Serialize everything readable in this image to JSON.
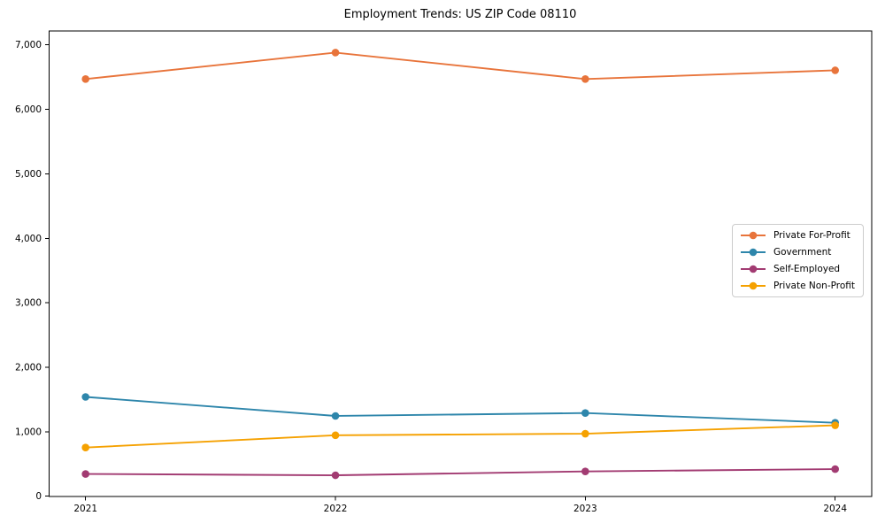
{
  "chart_data": {
    "type": "line",
    "title": "Employment Trends: US ZIP Code 08110",
    "x": [
      "2021",
      "2022",
      "2023",
      "2024"
    ],
    "series": [
      {
        "name": "Private For-Profit",
        "color": "#E8743B",
        "values": [
          6470,
          6880,
          6470,
          6605
        ]
      },
      {
        "name": "Government",
        "color": "#2E86AB",
        "values": [
          1540,
          1245,
          1290,
          1140
        ]
      },
      {
        "name": "Self-Employed",
        "color": "#A23B72",
        "values": [
          345,
          325,
          385,
          420
        ]
      },
      {
        "name": "Private Non-Profit",
        "color": "#F5A101",
        "values": [
          755,
          945,
          970,
          1100
        ]
      }
    ],
    "xlabel": "",
    "ylabel": "",
    "ylim": [
      0,
      7215
    ],
    "yticks": [
      0,
      1000,
      2000,
      3000,
      4000,
      5000,
      6000,
      7000
    ],
    "ytick_labels": [
      "0",
      "1,000",
      "2,000",
      "3,000",
      "4,000",
      "5,000",
      "6,000",
      "7,000"
    ],
    "legend_position": "center right",
    "grid": false,
    "background_color": "#ffffff",
    "marker": "circle"
  }
}
